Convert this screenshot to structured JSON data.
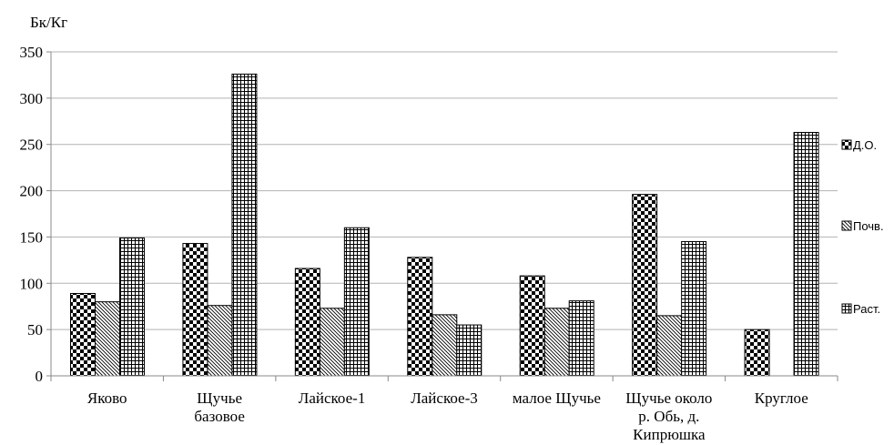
{
  "chart_data": {
    "type": "bar",
    "title": "",
    "xlabel": "",
    "ylabel": "Бк/Кг",
    "ylim": [
      0,
      350
    ],
    "yticks": [
      0,
      50,
      100,
      150,
      200,
      250,
      300,
      350
    ],
    "grid": "horizontal",
    "legend_position": "right",
    "categories": [
      [
        "Яково"
      ],
      [
        "Щучье",
        "базовое"
      ],
      [
        "Лайское-1"
      ],
      [
        "Лайское-3"
      ],
      [
        "малое Щучье"
      ],
      [
        "Щучье около",
        "р. Обь, д.",
        "Кипрюшка"
      ],
      [
        "Круглое"
      ]
    ],
    "series": [
      {
        "name": "Д.О.",
        "pattern": "checker",
        "values": [
          89,
          143,
          116,
          128,
          108,
          196,
          50
        ]
      },
      {
        "name": "Почв.",
        "pattern": "diagonal",
        "values": [
          80,
          76,
          73,
          66,
          73,
          65,
          null
        ]
      },
      {
        "name": "Раст.",
        "pattern": "grid",
        "values": [
          149,
          326,
          160,
          55,
          81,
          145,
          263
        ]
      }
    ]
  }
}
